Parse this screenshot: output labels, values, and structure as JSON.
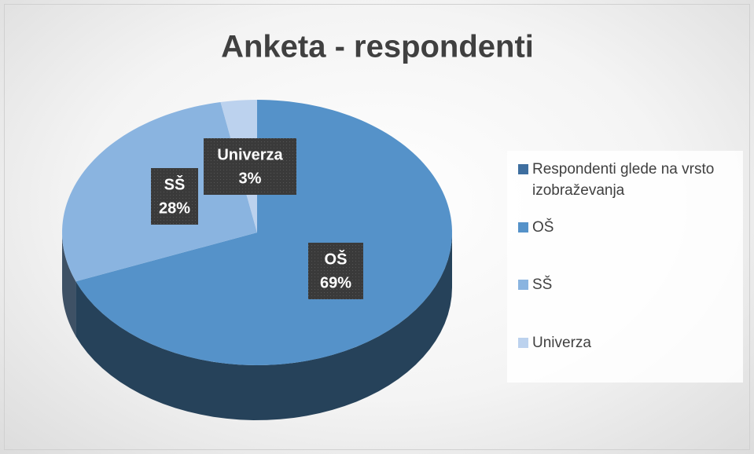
{
  "chart_data": {
    "type": "pie",
    "title": "Anketa - respondenti",
    "series_name": "Respondenti glede na vrsto izobraževanja",
    "series_color": "#3e6e9f",
    "categories": [
      "OŠ",
      "SŠ",
      "Univerza"
    ],
    "values": [
      69,
      28,
      3
    ],
    "value_labels": [
      "69%",
      "28%",
      "3%"
    ],
    "colors": [
      "#5592c9",
      "#8ab4e0",
      "#bcd2ee"
    ],
    "legend": "right"
  }
}
